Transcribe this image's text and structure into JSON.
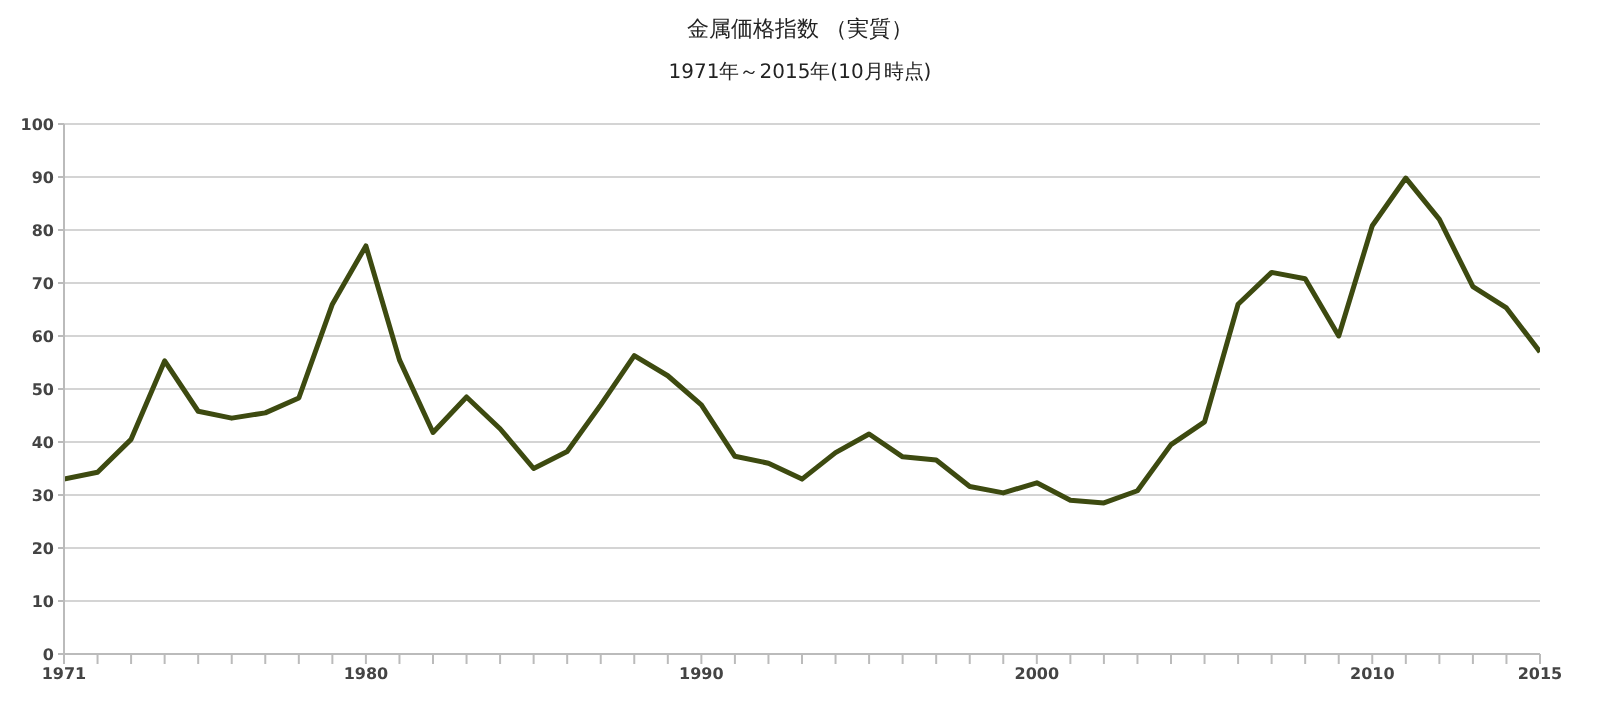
{
  "chart_data": {
    "type": "line",
    "title": "金属価格指数 （実質）",
    "subtitle": "1971年～2015年(10月時点)",
    "x": [
      1971,
      1972,
      1973,
      1974,
      1975,
      1976,
      1977,
      1978,
      1979,
      1980,
      1981,
      1982,
      1983,
      1984,
      1985,
      1986,
      1987,
      1988,
      1989,
      1990,
      1991,
      1992,
      1993,
      1994,
      1995,
      1996,
      1997,
      1998,
      1999,
      2000,
      2001,
      2002,
      2003,
      2004,
      2005,
      2006,
      2007,
      2008,
      2009,
      2010,
      2011,
      2012,
      2013,
      2014,
      2015
    ],
    "series": [
      {
        "color": "#3d4a10",
        "values": [
          33,
          34.3,
          40.5,
          55.3,
          45.8,
          44.5,
          45.5,
          48.3,
          66,
          77,
          55.5,
          41.8,
          48.5,
          42.5,
          35,
          38.2,
          47,
          56.3,
          52.5,
          47,
          37.3,
          36,
          33,
          38,
          41.5,
          37.2,
          36.6,
          31.6,
          30.4,
          32.3,
          29,
          28.5,
          30.8,
          39.5,
          43.8,
          66,
          72,
          70.8,
          60,
          80.8,
          89.8,
          82,
          69.3,
          65.3,
          57
        ]
      }
    ],
    "xlim": [
      1971,
      2015
    ],
    "xticks": [
      1971,
      {
        "value": 1972,
        "label": null
      },
      {
        "value": 1973,
        "label": null
      },
      {
        "value": 1974,
        "label": null
      },
      {
        "value": 1975,
        "label": null
      },
      {
        "value": 1976,
        "label": null
      },
      {
        "value": 1977,
        "label": null
      },
      {
        "value": 1978,
        "label": null
      },
      {
        "value": 1979,
        "label": null
      },
      1980,
      {
        "value": 1981,
        "label": null
      },
      {
        "value": 1982,
        "label": null
      },
      {
        "value": 1983,
        "label": null
      },
      {
        "value": 1984,
        "label": null
      },
      {
        "value": 1985,
        "label": null
      },
      {
        "value": 1986,
        "label": null
      },
      {
        "value": 1987,
        "label": null
      },
      {
        "value": 1988,
        "label": null
      },
      {
        "value": 1989,
        "label": null
      },
      1990,
      {
        "value": 1991,
        "label": null
      },
      {
        "value": 1992,
        "label": null
      },
      {
        "value": 1993,
        "label": null
      },
      {
        "value": 1994,
        "label": null
      },
      {
        "value": 1995,
        "label": null
      },
      {
        "value": 1996,
        "label": null
      },
      {
        "value": 1997,
        "label": null
      },
      {
        "value": 1998,
        "label": null
      },
      {
        "value": 1999,
        "label": null
      },
      2000,
      {
        "value": 2001,
        "label": null
      },
      {
        "value": 2002,
        "label": null
      },
      {
        "value": 2003,
        "label": null
      },
      {
        "value": 2004,
        "label": null
      },
      {
        "value": 2005,
        "label": null
      },
      {
        "value": 2006,
        "label": null
      },
      {
        "value": 2007,
        "label": null
      },
      {
        "value": 2008,
        "label": null
      },
      {
        "value": 2009,
        "label": null
      },
      2010,
      {
        "value": 2011,
        "label": null
      },
      {
        "value": 2012,
        "label": null
      },
      {
        "value": 2013,
        "label": null
      },
      {
        "value": 2014,
        "label": null
      },
      2015
    ],
    "ylim": [
      0,
      100
    ],
    "yticks": [
      0,
      10,
      20,
      30,
      40,
      50,
      60,
      70,
      80,
      90,
      100
    ],
    "grid": "y",
    "legend": false,
    "marker": "none",
    "line_style": "solid"
  }
}
